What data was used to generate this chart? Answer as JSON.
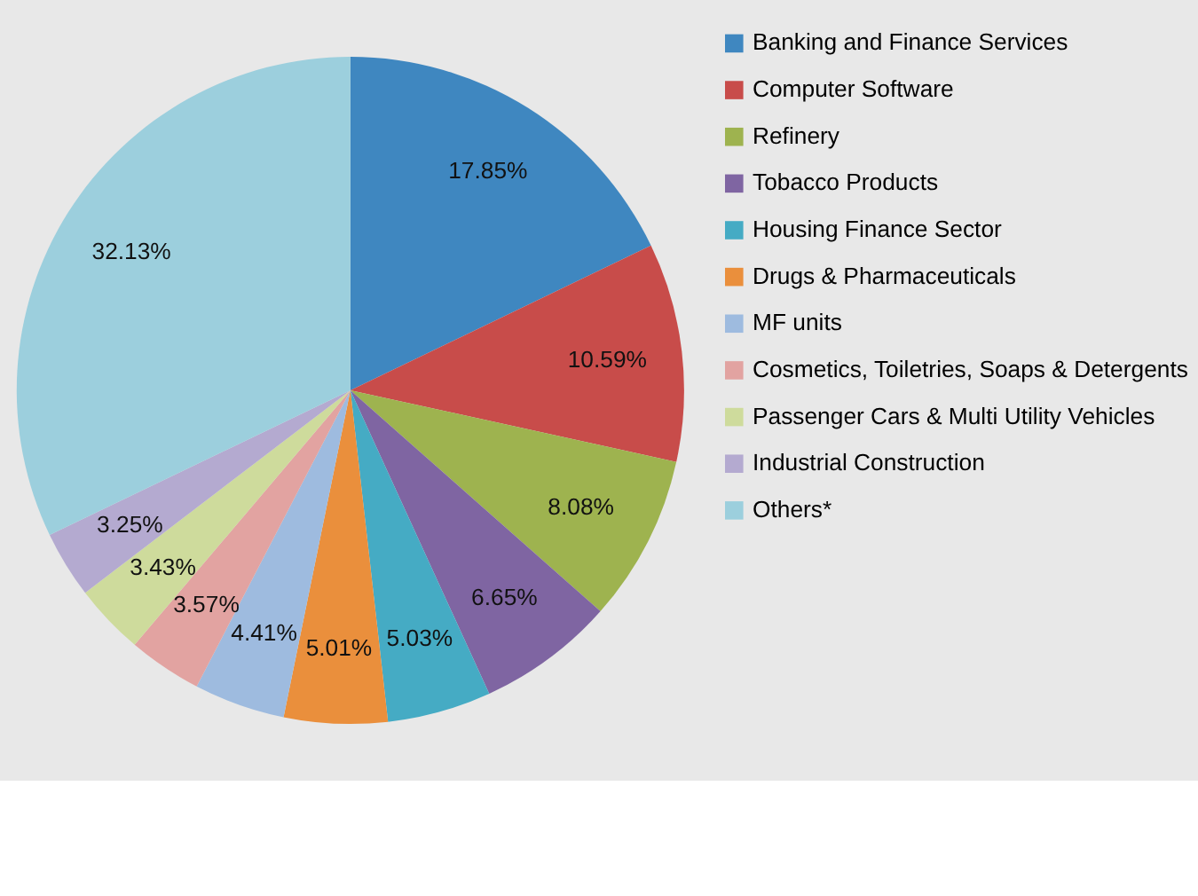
{
  "chart_data": {
    "type": "pie",
    "categories": [
      "Banking and Finance Services",
      "Computer Software",
      "Refinery",
      "Tobacco Products",
      "Housing Finance Sector",
      "Drugs & Pharmaceuticals",
      "MF units",
      "Cosmetics, Toiletries, Soaps & Detergents",
      "Passenger Cars & Multi Utility Vehicles",
      "Industrial Construction",
      "Others*"
    ],
    "values": [
      17.85,
      10.59,
      8.08,
      6.65,
      5.03,
      5.01,
      4.41,
      3.57,
      3.43,
      3.25,
      32.13
    ],
    "value_labels": [
      "17.85%",
      "10.59%",
      "8.08%",
      "6.65%",
      "5.03%",
      "5.01%",
      "4.41%",
      "3.57%",
      "3.43%",
      "3.25%",
      "32.13%"
    ],
    "colors": [
      "#3f87c0",
      "#c84c4a",
      "#9eb34f",
      "#7f65a2",
      "#45abc4",
      "#ea8f3c",
      "#9ebbdf",
      "#e2a3a1",
      "#cedb9c",
      "#b4aad0",
      "#9ccfdd"
    ],
    "legend": "right"
  }
}
